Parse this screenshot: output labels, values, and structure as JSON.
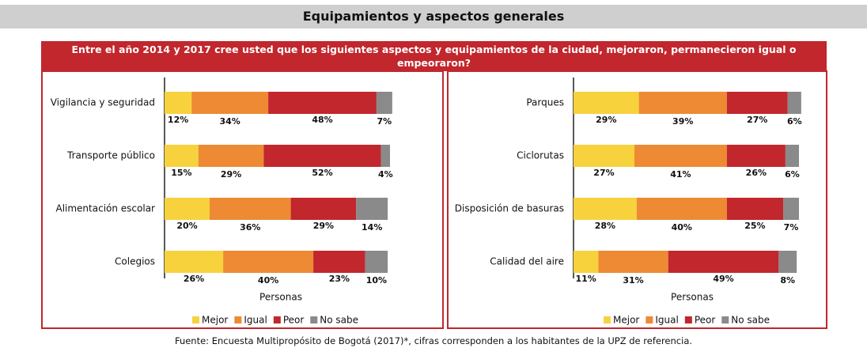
{
  "header": {
    "title": "Equipamientos y aspectos generales"
  },
  "question": "Entre el año 2014 y 2017 cree usted que los siguientes aspectos y equipamientos de la ciudad, mejoraron, permanecieron igual o empeoraron?",
  "chart_data": [
    {
      "type": "bar",
      "orientation": "horizontal",
      "stacked": true,
      "x_label": "Personas",
      "categories": [
        "Vigilancia y seguridad",
        "Transporte público",
        "Alimentación escolar",
        "Colegios"
      ],
      "series": [
        {
          "name": "Mejor",
          "color": "#f7d23c",
          "values": [
            12,
            15,
            20,
            26
          ],
          "value_labels": [
            "12%",
            "15%",
            "20%",
            "26%"
          ]
        },
        {
          "name": "Igual",
          "color": "#ee8a33",
          "values": [
            34,
            29,
            36,
            40
          ],
          "value_labels": [
            "34%",
            "29%",
            "36%",
            "40%"
          ]
        },
        {
          "name": "Peor",
          "color": "#c1272d",
          "values": [
            48,
            52,
            29,
            23
          ],
          "value_labels": [
            "48%",
            "52%",
            "29%",
            "23%"
          ]
        },
        {
          "name": "No sabe",
          "color": "#8a8a8a",
          "values": [
            7,
            4,
            14,
            10
          ],
          "value_labels": [
            "7%",
            "4%",
            "14%",
            "10%"
          ]
        }
      ]
    },
    {
      "type": "bar",
      "orientation": "horizontal",
      "stacked": true,
      "x_label": "Personas",
      "categories": [
        "Parques",
        "Ciclorutas",
        "Disposición de basuras",
        "Calidad del aire"
      ],
      "series": [
        {
          "name": "Mejor",
          "color": "#f7d23c",
          "values": [
            29,
            27,
            28,
            11
          ],
          "value_labels": [
            "29%",
            "27%",
            "28%",
            "11%"
          ]
        },
        {
          "name": "Igual",
          "color": "#ee8a33",
          "values": [
            39,
            41,
            40,
            31
          ],
          "value_labels": [
            "39%",
            "41%",
            "40%",
            "31%"
          ]
        },
        {
          "name": "Peor",
          "color": "#c1272d",
          "values": [
            27,
            26,
            25,
            49
          ],
          "value_labels": [
            "27%",
            "26%",
            "25%",
            "49%"
          ]
        },
        {
          "name": "No sabe",
          "color": "#8a8a8a",
          "values": [
            6,
            6,
            7,
            8
          ],
          "value_labels": [
            "6%",
            "6%",
            "7%",
            "8%"
          ]
        }
      ]
    }
  ],
  "footer": "Fuente: Encuesta Multipropósito de Bogotá (2017)*, cifras corresponden a los habitantes de la UPZ de referencia."
}
